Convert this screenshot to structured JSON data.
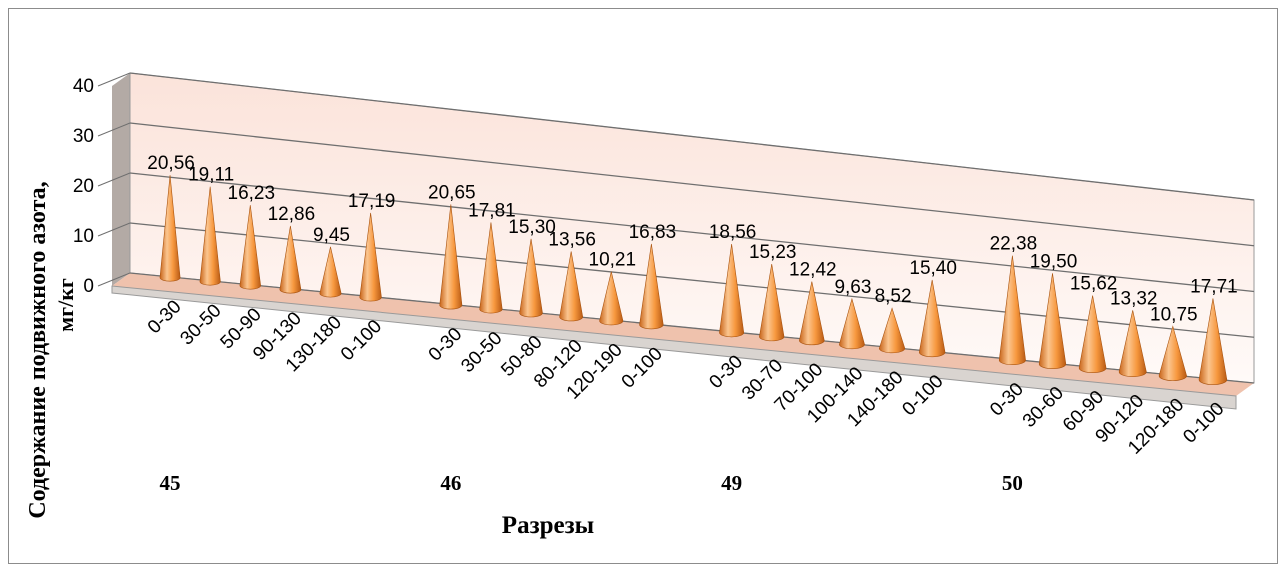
{
  "chart_data": {
    "type": "bar",
    "mark": "cone",
    "view": "3d",
    "xlabel": "Разрезы",
    "ylabel": [
      "Содержание подвижного азота,",
      "мг/кг"
    ],
    "ylim": [
      0,
      40
    ],
    "yticks": [
      "0",
      "10",
      "20",
      "30",
      "40"
    ],
    "grid": true,
    "groups": [
      {
        "name": "45",
        "categories": [
          "0-30",
          "30-50",
          "50-90",
          "90-130",
          "130-180",
          "0-100"
        ],
        "values": [
          20.56,
          19.11,
          16.23,
          12.86,
          9.45,
          17.19
        ],
        "labels": [
          "20,56",
          "19,11",
          "16,23",
          "12,86",
          "9,45",
          "17,19"
        ]
      },
      {
        "name": "46",
        "categories": [
          "0-30",
          "30-50",
          "50-80",
          "80-120",
          "120-190",
          "0-100"
        ],
        "values": [
          20.65,
          17.81,
          15.3,
          13.56,
          10.21,
          16.83
        ],
        "labels": [
          "20,65",
          "17,81",
          "15,30",
          "13,56",
          "10,21",
          "16,83"
        ]
      },
      {
        "name": "49",
        "categories": [
          "0-30",
          "30-70",
          "70-100",
          "100-140",
          "140-180",
          "0-100"
        ],
        "values": [
          18.56,
          15.23,
          12.42,
          9.63,
          8.52,
          15.4
        ],
        "labels": [
          "18,56",
          "15,23",
          "12,42",
          "9,63",
          "8,52",
          "15,40"
        ]
      },
      {
        "name": "50",
        "categories": [
          "0-30",
          "30-60",
          "60-90",
          "90-120",
          "120-180",
          "0-100"
        ],
        "values": [
          22.38,
          19.5,
          15.62,
          13.32,
          10.75,
          17.71
        ],
        "labels": [
          "22,38",
          "19,50",
          "15,62",
          "13,32",
          "10,75",
          "17,71"
        ]
      }
    ],
    "colors": {
      "cone_light": "#fbc58f",
      "cone_mid": "#f7983e",
      "cone_dark": "#c8651a",
      "back_wall_top": "#fbe6de",
      "back_wall_bottom": "#ffffff",
      "floor": "#f3c9b6",
      "gridline": "#7a7a7a"
    }
  }
}
